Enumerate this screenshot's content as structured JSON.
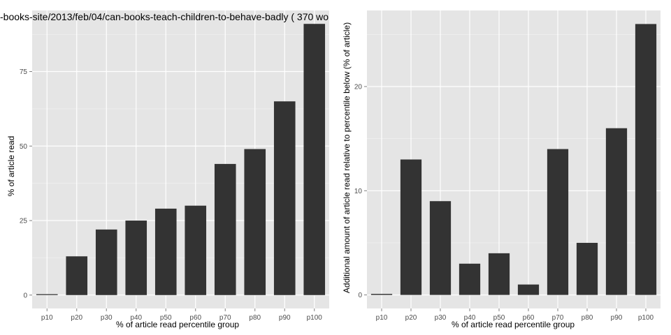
{
  "chart_data": [
    {
      "type": "bar",
      "title": "-books-site/2013/feb/04/can-books-teach-children-to-behave-badly ( 370 wo",
      "xlabel": "% of article read percentile group",
      "ylabel": "% of article read",
      "categories": [
        "p10",
        "p20",
        "p30",
        "p40",
        "p50",
        "p60",
        "p70",
        "p80",
        "p90",
        "p100"
      ],
      "values": [
        0.3,
        13,
        22,
        25,
        29,
        30,
        44,
        49,
        65,
        91
      ],
      "ylim": [
        -4.5,
        95.5
      ],
      "yticks": [
        0,
        25,
        50,
        75
      ],
      "grid": true,
      "bar_color": "#333333",
      "panel_color": "#e5e5e5"
    },
    {
      "type": "bar",
      "title": "",
      "xlabel": "% of article read percentile group",
      "ylabel": "Additional amount of article read relative to percentile below (% of article)",
      "categories": [
        "p10",
        "p20",
        "p30",
        "p40",
        "p50",
        "p60",
        "p70",
        "p80",
        "p90",
        "p100"
      ],
      "values": [
        0.1,
        13,
        9,
        3,
        4,
        1,
        14,
        5,
        16,
        26
      ],
      "ylim": [
        -1.3,
        27.3
      ],
      "yticks": [
        0,
        10,
        20
      ],
      "grid": true,
      "bar_color": "#333333",
      "panel_color": "#e5e5e5"
    }
  ]
}
